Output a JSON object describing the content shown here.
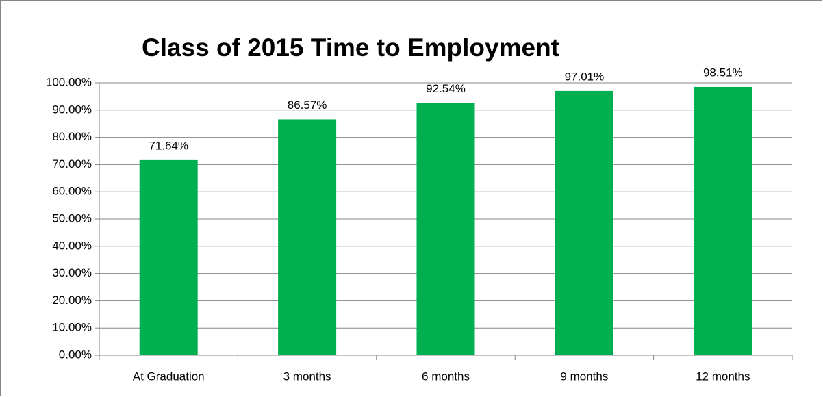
{
  "chart_data": {
    "type": "bar",
    "title": "Class of 2015 Time to Employment",
    "categories": [
      "At Graduation",
      "3 months",
      "6 months",
      "9 months",
      "12 months"
    ],
    "values": [
      71.64,
      86.57,
      92.54,
      97.01,
      98.51
    ],
    "value_labels": [
      "71.64%",
      "86.57%",
      "92.54%",
      "97.01%",
      "98.51%"
    ],
    "color": "#00b050",
    "ylim": [
      0,
      100
    ],
    "yticks": [
      {
        "value": 0,
        "label": "0.00%"
      },
      {
        "value": 10,
        "label": "10.00%"
      },
      {
        "value": 20,
        "label": "20.00%"
      },
      {
        "value": 30,
        "label": "30.00%"
      },
      {
        "value": 40,
        "label": "40.00%"
      },
      {
        "value": 50,
        "label": "50.00%"
      },
      {
        "value": 60,
        "label": "60.00%"
      },
      {
        "value": 70,
        "label": "70.00%"
      },
      {
        "value": 80,
        "label": "80.00%"
      },
      {
        "value": 90,
        "label": "90.00%"
      },
      {
        "value": 100,
        "label": "100.00%"
      }
    ],
    "grid": true
  }
}
